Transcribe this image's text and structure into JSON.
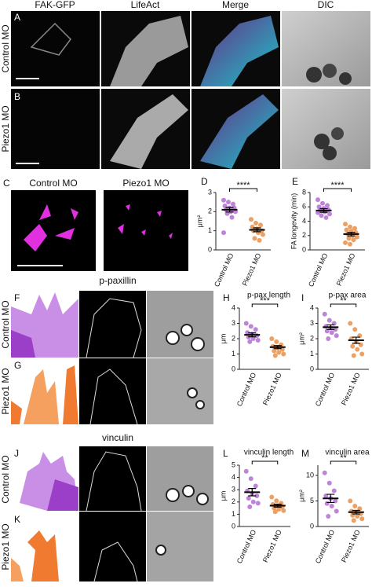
{
  "figure": {
    "column_headers": [
      "FAK-GFP",
      "LifeAct",
      "Merge",
      "DIC"
    ],
    "ab_row_labels": [
      "Control MO",
      "Piezo1 MO"
    ],
    "panel_c_titles": [
      "Control MO",
      "Piezo1 MO"
    ],
    "section_titles": [
      "p-paxillin",
      "vinculin"
    ],
    "fgjk_row_labels": [
      "Control MO",
      "Piezo1 MO",
      "Control MO",
      "Piezo1 MO"
    ],
    "panel_letters": [
      "A",
      "B",
      "C",
      "D",
      "E",
      "F",
      "G",
      "H",
      "I",
      "J",
      "K",
      "L",
      "M"
    ]
  },
  "chart_data": [
    {
      "type": "strip",
      "ylabel": "μm²",
      "categories": [
        "Control MO",
        "Piezo1 MO"
      ],
      "colors": [
        "#b36fd1",
        "#e8904a"
      ],
      "values": [
        [
          2.6,
          2.5,
          2.4,
          2.3,
          2.2,
          2.2,
          2.1,
          2.0,
          2.0,
          1.9,
          1.7,
          0.9
        ],
        [
          1.6,
          1.4,
          1.3,
          1.2,
          1.1,
          1.0,
          1.0,
          0.9,
          0.8,
          0.6,
          0.5
        ]
      ],
      "means": [
        2.1,
        1.05
      ],
      "errors": [
        0.12,
        0.1
      ],
      "ylim": [
        0,
        3
      ],
      "yticks": [
        0,
        1,
        2,
        3
      ],
      "significance": "****"
    },
    {
      "type": "strip",
      "ylabel": "FA longevity (min)",
      "categories": [
        "Control MO",
        "Piezo1 MO"
      ],
      "colors": [
        "#b36fd1",
        "#e8904a"
      ],
      "values": [
        [
          7.0,
          6.5,
          6.2,
          6.0,
          5.8,
          5.6,
          5.5,
          5.3,
          5.0,
          4.8,
          4.5,
          5.2
        ],
        [
          3.6,
          3.2,
          3.0,
          2.8,
          2.6,
          2.4,
          2.2,
          2.0,
          1.8,
          1.6,
          1.4,
          1.0,
          0.8
        ]
      ],
      "means": [
        5.5,
        2.2
      ],
      "errors": [
        0.25,
        0.25
      ],
      "ylim": [
        0,
        8
      ],
      "yticks": [
        0,
        2,
        4,
        6,
        8
      ],
      "significance": "****"
    },
    {
      "type": "strip",
      "title": "p-pax length",
      "ylabel": "μm",
      "categories": [
        "Control MO",
        "Piezo1 MO"
      ],
      "colors": [
        "#b36fd1",
        "#e8904a"
      ],
      "values": [
        [
          3.0,
          2.8,
          2.6,
          2.4,
          2.3,
          2.2,
          2.1,
          2.0,
          1.9,
          1.8
        ],
        [
          2.0,
          1.8,
          1.6,
          1.5,
          1.4,
          1.3,
          1.2,
          1.1,
          1.0,
          0.9
        ]
      ],
      "means": [
        2.25,
        1.45
      ],
      "errors": [
        0.13,
        0.1
      ],
      "ylim": [
        0,
        4
      ],
      "yticks": [
        0,
        1,
        2,
        3,
        4
      ],
      "significance": "***"
    },
    {
      "type": "strip",
      "title": "p-pax area",
      "ylabel": "μm²",
      "categories": [
        "Control MO",
        "Piezo1 MO"
      ],
      "colors": [
        "#b36fd1",
        "#e8904a"
      ],
      "values": [
        [
          3.6,
          3.2,
          3.0,
          2.8,
          2.7,
          2.6,
          2.5,
          2.4,
          2.2,
          2.0
        ],
        [
          3.0,
          2.6,
          2.2,
          2.0,
          1.8,
          1.6,
          1.5,
          1.3,
          1.0,
          0.9
        ]
      ],
      "means": [
        2.75,
        1.9
      ],
      "errors": [
        0.15,
        0.2
      ],
      "ylim": [
        0,
        4
      ],
      "yticks": [
        0,
        1,
        2,
        3,
        4
      ],
      "significance": "**"
    },
    {
      "type": "strip",
      "title": "vinculin length",
      "ylabel": "μm",
      "categories": [
        "Control MO",
        "Piezo1 MO"
      ],
      "colors": [
        "#b36fd1",
        "#e8904a"
      ],
      "values": [
        [
          4.5,
          3.9,
          3.3,
          2.9,
          2.7,
          2.5,
          2.3,
          2.0,
          1.9,
          1.6
        ],
        [
          2.4,
          2.1,
          1.9,
          1.8,
          1.7,
          1.6,
          1.5,
          1.4,
          1.3,
          1.2
        ]
      ],
      "means": [
        2.8,
        1.7
      ],
      "errors": [
        0.3,
        0.12
      ],
      "ylim": [
        0,
        5
      ],
      "yticks": [
        0,
        1,
        2,
        3,
        4,
        5
      ],
      "significance": "**"
    },
    {
      "type": "strip",
      "title": "vinculin area",
      "ylabel": "μm²",
      "categories": [
        "Control MO",
        "Piezo1 MO"
      ],
      "colors": [
        "#b36fd1",
        "#e8904a"
      ],
      "values": [
        [
          10.5,
          8.5,
          7.0,
          6.0,
          5.5,
          5.0,
          4.5,
          4.0,
          3.0,
          2.0
        ],
        [
          5.0,
          4.0,
          3.5,
          3.0,
          2.8,
          2.5,
          2.2,
          2.0,
          1.5,
          1.2
        ]
      ],
      "means": [
        5.5,
        2.8
      ],
      "errors": [
        0.8,
        0.35
      ],
      "ylim": [
        0,
        12
      ],
      "yticks": [
        0,
        5,
        10
      ],
      "significance": "**"
    }
  ]
}
